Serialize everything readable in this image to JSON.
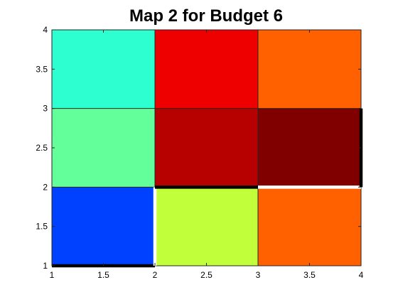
{
  "chart_data": {
    "type": "heatmap",
    "title": "Map 2 for Budget 6",
    "xlim": [
      1,
      4
    ],
    "ylim": [
      1,
      4
    ],
    "xticks": [
      "1",
      "1.5",
      "2",
      "2.5",
      "3",
      "3.5",
      "4"
    ],
    "yticks": [
      "1",
      "1.5",
      "2",
      "2.5",
      "3",
      "3.5",
      "4"
    ],
    "grid": false,
    "cells": [
      {
        "x0": 1,
        "x1": 2,
        "y0": 3,
        "y1": 4,
        "color": "#2dffd0"
      },
      {
        "x0": 2,
        "x1": 3,
        "y0": 3,
        "y1": 4,
        "color": "#ee0000"
      },
      {
        "x0": 3,
        "x1": 4,
        "y0": 3,
        "y1": 4,
        "color": "#ff6000"
      },
      {
        "x0": 1,
        "x1": 2,
        "y0": 2,
        "y1": 3,
        "color": "#62ff9b"
      },
      {
        "x0": 2,
        "x1": 3,
        "y0": 2,
        "y1": 3,
        "color": "#b70000"
      },
      {
        "x0": 3,
        "x1": 4,
        "y0": 2,
        "y1": 3,
        "color": "#800000"
      },
      {
        "x0": 1,
        "x1": 2,
        "y0": 1,
        "y1": 2,
        "color": "#0040ff"
      },
      {
        "x0": 2,
        "x1": 3,
        "y0": 1,
        "y1": 2,
        "color": "#c2ff3b"
      },
      {
        "x0": 3,
        "x1": 4,
        "y0": 1,
        "y1": 2,
        "color": "#ff6000"
      }
    ],
    "edges": [
      {
        "x0": 1,
        "y0": 1,
        "x1": 2,
        "y1": 1,
        "color": "#000000",
        "weight": "thick"
      },
      {
        "x0": 2,
        "y0": 1,
        "x1": 2,
        "y1": 2,
        "color": "#ffffff",
        "weight": "thick"
      },
      {
        "x0": 2,
        "y0": 2,
        "x1": 3,
        "y1": 2,
        "color": "#000000",
        "weight": "thick"
      },
      {
        "x0": 3,
        "y0": 2,
        "x1": 4,
        "y1": 2,
        "color": "#ffffff",
        "weight": "thick"
      },
      {
        "x0": 4,
        "y0": 2,
        "x1": 4,
        "y1": 3,
        "color": "#000000",
        "weight": "thick"
      }
    ]
  }
}
